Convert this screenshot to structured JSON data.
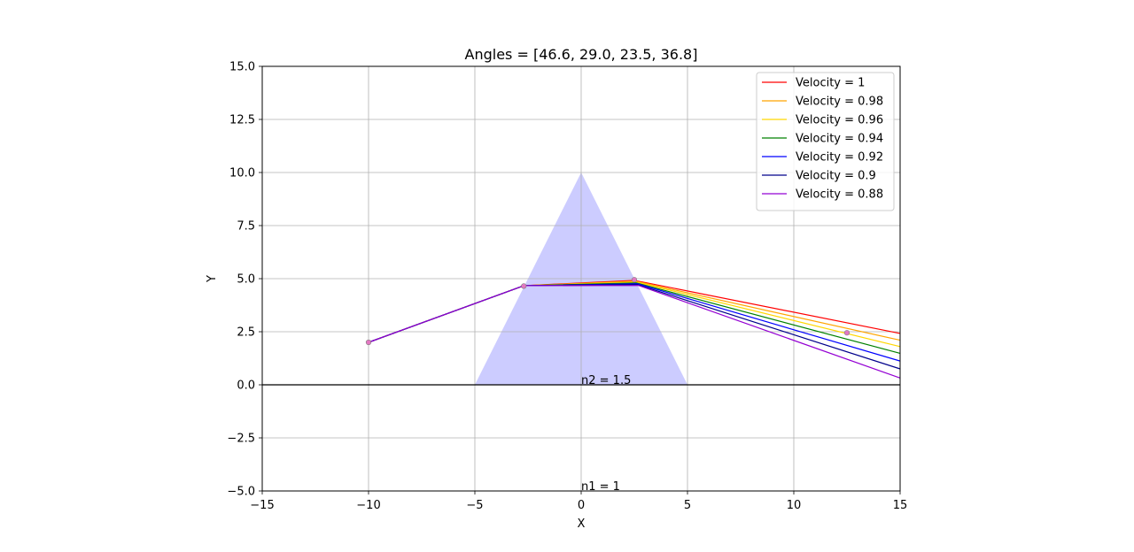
{
  "chart_data": {
    "type": "line",
    "title": "Angles = [46.6, 29.0, 23.5, 36.8]",
    "xlabel": "X",
    "ylabel": "Y",
    "xlim": [
      -15,
      15
    ],
    "ylim": [
      -5,
      15
    ],
    "xticks": [
      -15,
      -10,
      -5,
      0,
      5,
      10,
      15
    ],
    "xtick_labels": [
      "−15",
      "−10",
      "−5",
      "0",
      "5",
      "10",
      "15"
    ],
    "yticks": [
      -5,
      -2.5,
      0,
      2.5,
      5,
      7.5,
      10,
      12.5,
      15
    ],
    "ytick_labels": [
      "−5.0",
      "−2.5",
      "0.0",
      "2.5",
      "5.0",
      "7.5",
      "10.0",
      "12.5",
      "15.0"
    ],
    "grid": true,
    "legend_position": "top-right",
    "prism": {
      "vertices": [
        [
          -5,
          0
        ],
        [
          0,
          10
        ],
        [
          5,
          0
        ]
      ],
      "color": "#ccccff"
    },
    "boundary_line": {
      "y": 0,
      "color": "#000000"
    },
    "annotations": [
      {
        "text": "n2 = 1.5",
        "x": 0,
        "y": 0
      },
      {
        "text": "n1 = 1",
        "x": 0,
        "y": -5
      }
    ],
    "markers": [
      {
        "x": -10,
        "y": 2.0
      },
      {
        "x": -2.7,
        "y": 4.65
      },
      {
        "x": 2.5,
        "y": 4.95
      },
      {
        "x": 12.5,
        "y": 2.45
      }
    ],
    "series": [
      {
        "name": "Velocity = 1",
        "color": "#ff0000",
        "x": [
          -10,
          -2.7,
          2.5,
          15
        ],
        "y": [
          2.0,
          4.67,
          4.92,
          2.42
        ]
      },
      {
        "name": "Velocity = 0.98",
        "color": "#ffa500",
        "x": [
          -10,
          -2.7,
          2.55,
          15
        ],
        "y": [
          2.0,
          4.67,
          4.88,
          2.1
        ]
      },
      {
        "name": "Velocity = 0.96",
        "color": "#ffd700",
        "x": [
          -10,
          -2.7,
          2.6,
          15
        ],
        "y": [
          2.0,
          4.67,
          4.84,
          1.8
        ]
      },
      {
        "name": "Velocity = 0.94",
        "color": "#008000",
        "x": [
          -10,
          -2.7,
          2.6,
          15
        ],
        "y": [
          2.0,
          4.67,
          4.8,
          1.48
        ]
      },
      {
        "name": "Velocity = 0.92",
        "color": "#0000ff",
        "x": [
          -10,
          -2.7,
          2.65,
          15
        ],
        "y": [
          2.0,
          4.67,
          4.76,
          1.12
        ]
      },
      {
        "name": "Velocity = 0.9",
        "color": "#00008b",
        "x": [
          -10,
          -2.7,
          2.65,
          15
        ],
        "y": [
          2.0,
          4.67,
          4.72,
          0.75
        ]
      },
      {
        "name": "Velocity = 0.88",
        "color": "#9400d3",
        "x": [
          -10,
          -2.7,
          2.7,
          15
        ],
        "y": [
          2.0,
          4.67,
          4.68,
          0.32
        ]
      }
    ]
  }
}
